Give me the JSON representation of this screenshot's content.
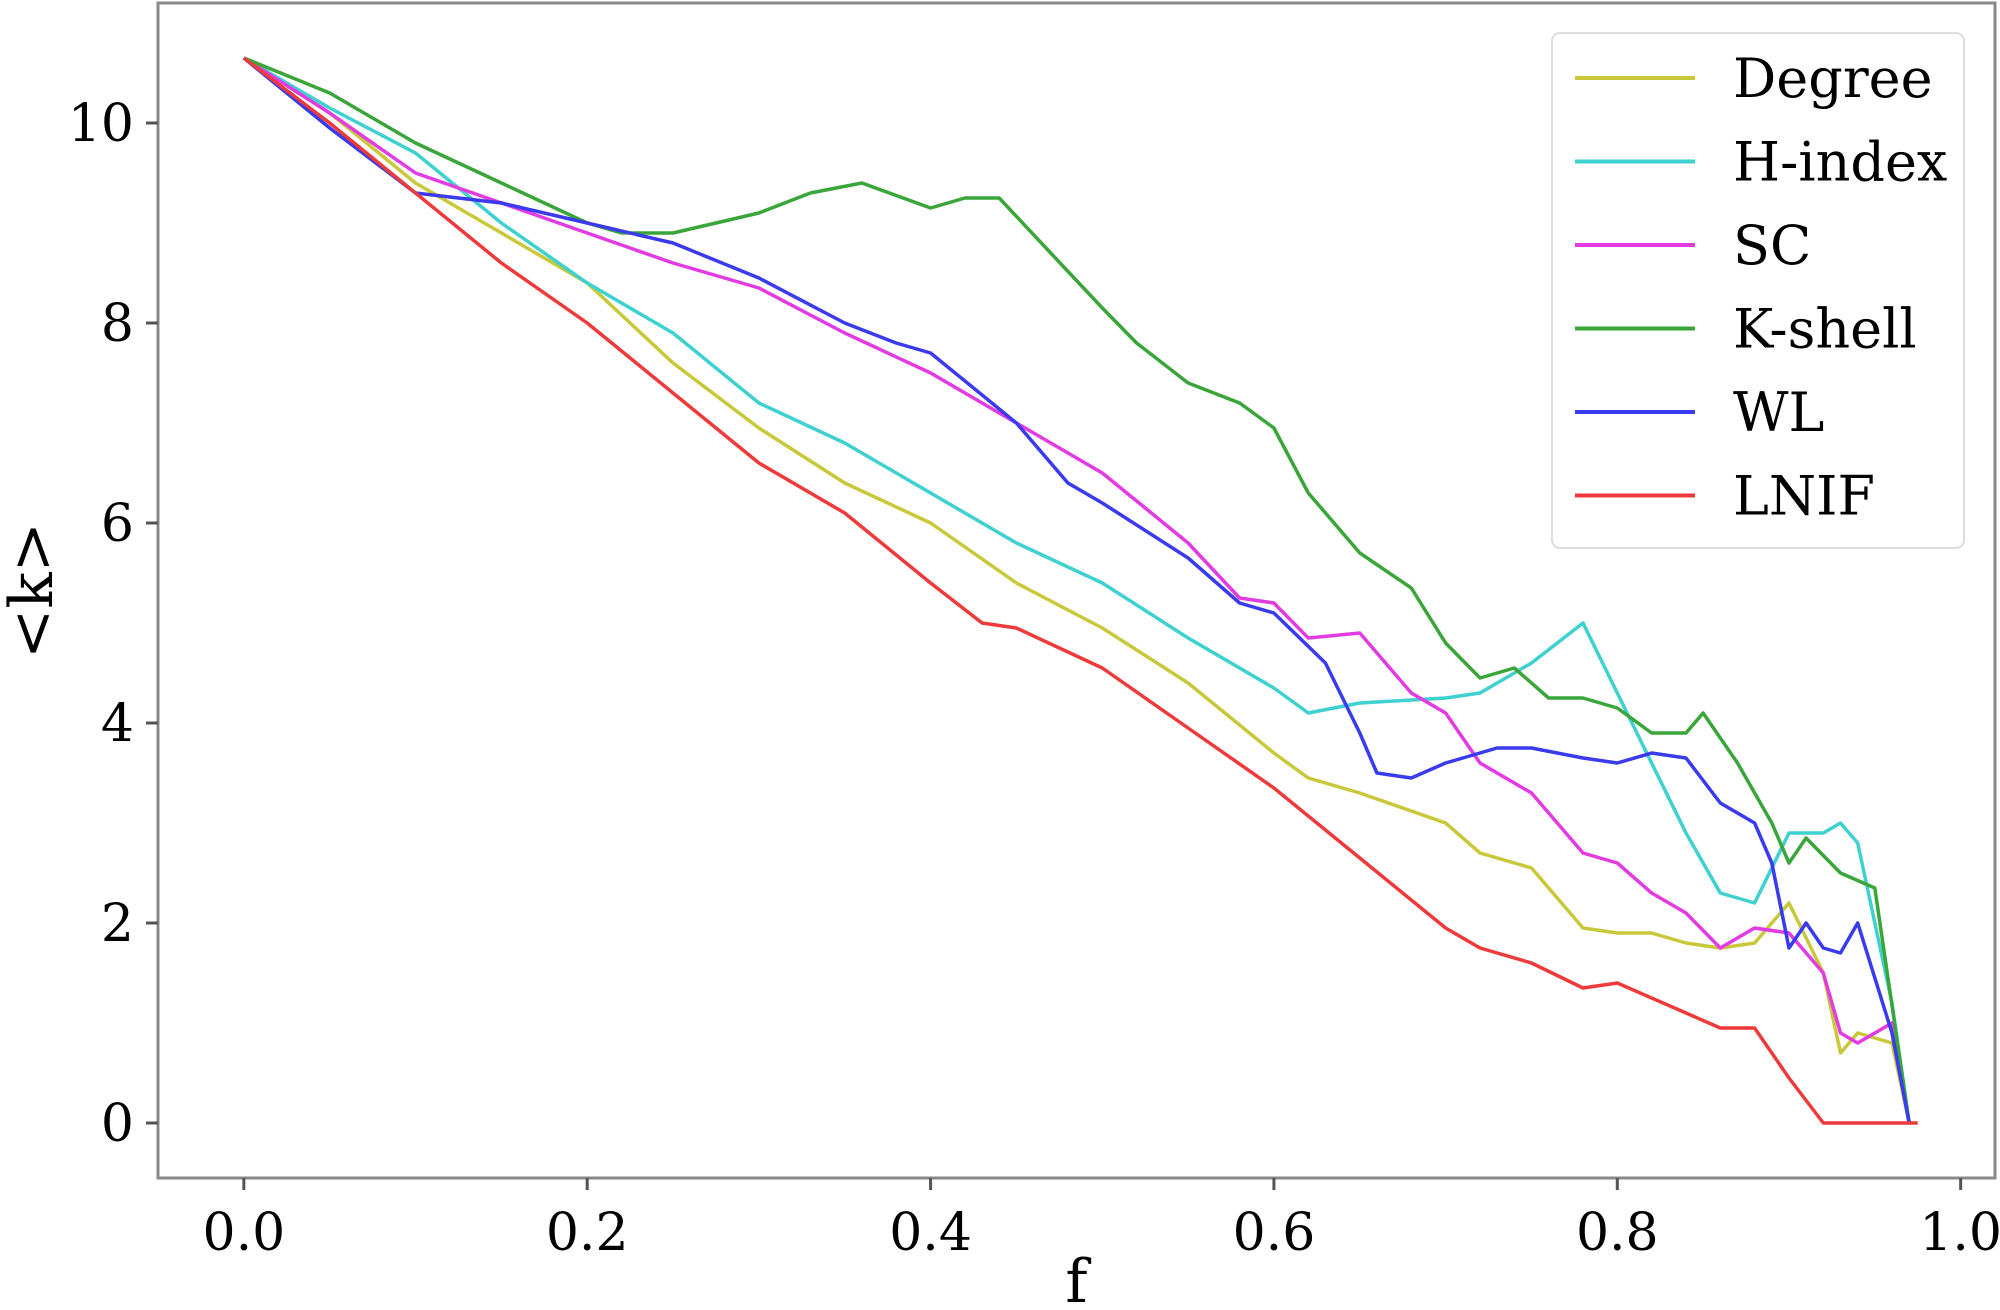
{
  "chart_data": {
    "type": "line",
    "xlabel": "f",
    "ylabel": "<k>",
    "xlim": [
      -0.05,
      1.02
    ],
    "ylim": [
      -0.55,
      11.2
    ],
    "xticks": [
      "0.0",
      "0.2",
      "0.4",
      "0.6",
      "0.8",
      "1.0"
    ],
    "yticks": [
      "0",
      "2",
      "4",
      "6",
      "8",
      "10"
    ],
    "grid": false,
    "legend_position": "top-right",
    "series": [
      {
        "name": "Degree",
        "color": "#c8c83a",
        "x": [
          0.0,
          0.05,
          0.1,
          0.15,
          0.2,
          0.25,
          0.3,
          0.35,
          0.4,
          0.45,
          0.5,
          0.55,
          0.6,
          0.62,
          0.65,
          0.7,
          0.72,
          0.75,
          0.78,
          0.8,
          0.82,
          0.84,
          0.86,
          0.88,
          0.9,
          0.92,
          0.93,
          0.94,
          0.96,
          0.97
        ],
        "y": [
          10.65,
          10.1,
          9.4,
          8.9,
          8.4,
          7.6,
          6.95,
          6.4,
          6.0,
          5.4,
          4.95,
          4.4,
          3.7,
          3.45,
          3.3,
          3.0,
          2.7,
          2.55,
          1.95,
          1.9,
          1.9,
          1.8,
          1.75,
          1.8,
          2.2,
          1.5,
          0.7,
          0.9,
          0.8,
          0.0
        ]
      },
      {
        "name": "H-index",
        "color": "#3fd0d0",
        "x": [
          0.0,
          0.05,
          0.1,
          0.15,
          0.2,
          0.25,
          0.3,
          0.35,
          0.4,
          0.45,
          0.5,
          0.55,
          0.6,
          0.62,
          0.65,
          0.7,
          0.72,
          0.75,
          0.78,
          0.8,
          0.82,
          0.84,
          0.86,
          0.88,
          0.9,
          0.92,
          0.93,
          0.94,
          0.96,
          0.97
        ],
        "y": [
          10.65,
          10.15,
          9.7,
          9.0,
          8.4,
          7.9,
          7.2,
          6.8,
          6.3,
          5.8,
          5.4,
          4.85,
          4.35,
          4.1,
          4.2,
          4.25,
          4.3,
          4.6,
          5.0,
          4.3,
          3.6,
          2.9,
          2.3,
          2.2,
          2.9,
          2.9,
          3.0,
          2.8,
          1.2,
          0.0
        ]
      },
      {
        "name": "SC",
        "color": "#e23be2",
        "x": [
          0.0,
          0.05,
          0.1,
          0.15,
          0.2,
          0.25,
          0.3,
          0.35,
          0.4,
          0.45,
          0.5,
          0.55,
          0.58,
          0.6,
          0.62,
          0.65,
          0.68,
          0.7,
          0.72,
          0.75,
          0.78,
          0.8,
          0.82,
          0.84,
          0.86,
          0.88,
          0.9,
          0.92,
          0.93,
          0.94,
          0.96,
          0.97
        ],
        "y": [
          10.65,
          10.1,
          9.5,
          9.2,
          8.9,
          8.6,
          8.35,
          7.9,
          7.5,
          7.0,
          6.5,
          5.8,
          5.25,
          5.2,
          4.85,
          4.9,
          4.3,
          4.1,
          3.6,
          3.3,
          2.7,
          2.6,
          2.3,
          2.1,
          1.75,
          1.95,
          1.9,
          1.5,
          0.9,
          0.8,
          1.0,
          0.0
        ]
      },
      {
        "name": "K-shell",
        "color": "#3aa63a",
        "x": [
          0.0,
          0.05,
          0.1,
          0.15,
          0.2,
          0.22,
          0.25,
          0.3,
          0.33,
          0.36,
          0.4,
          0.42,
          0.44,
          0.47,
          0.5,
          0.52,
          0.55,
          0.58,
          0.6,
          0.62,
          0.65,
          0.68,
          0.7,
          0.72,
          0.74,
          0.76,
          0.78,
          0.8,
          0.82,
          0.84,
          0.85,
          0.87,
          0.89,
          0.9,
          0.91,
          0.93,
          0.95,
          0.97
        ],
        "y": [
          10.65,
          10.3,
          9.8,
          9.4,
          9.0,
          8.9,
          8.9,
          9.1,
          9.3,
          9.4,
          9.15,
          9.25,
          9.25,
          8.7,
          8.15,
          7.8,
          7.4,
          7.2,
          6.95,
          6.3,
          5.7,
          5.35,
          4.8,
          4.45,
          4.55,
          4.25,
          4.25,
          4.15,
          3.9,
          3.9,
          4.1,
          3.6,
          3.0,
          2.6,
          2.85,
          2.5,
          2.35,
          0.0
        ]
      },
      {
        "name": "WL",
        "color": "#3a3aee",
        "x": [
          0.0,
          0.05,
          0.1,
          0.15,
          0.2,
          0.25,
          0.3,
          0.35,
          0.38,
          0.4,
          0.45,
          0.48,
          0.5,
          0.55,
          0.58,
          0.6,
          0.63,
          0.65,
          0.66,
          0.68,
          0.7,
          0.73,
          0.75,
          0.78,
          0.8,
          0.82,
          0.84,
          0.86,
          0.88,
          0.89,
          0.9,
          0.91,
          0.92,
          0.93,
          0.94,
          0.96,
          0.97
        ],
        "y": [
          10.65,
          9.95,
          9.3,
          9.2,
          9.0,
          8.8,
          8.45,
          8.0,
          7.8,
          7.7,
          7.0,
          6.4,
          6.2,
          5.65,
          5.2,
          5.1,
          4.6,
          3.9,
          3.5,
          3.45,
          3.6,
          3.75,
          3.75,
          3.65,
          3.6,
          3.7,
          3.65,
          3.2,
          3.0,
          2.6,
          1.75,
          2.0,
          1.75,
          1.7,
          2.0,
          0.9,
          0.0
        ]
      },
      {
        "name": "LNIF",
        "color": "#ee3a3a",
        "x": [
          0.0,
          0.05,
          0.1,
          0.15,
          0.2,
          0.25,
          0.3,
          0.35,
          0.4,
          0.43,
          0.45,
          0.5,
          0.55,
          0.6,
          0.65,
          0.7,
          0.72,
          0.75,
          0.78,
          0.8,
          0.82,
          0.84,
          0.86,
          0.88,
          0.9,
          0.92,
          0.94,
          0.96,
          0.975
        ],
        "y": [
          10.65,
          10.0,
          9.3,
          8.6,
          8.0,
          7.3,
          6.6,
          6.1,
          5.4,
          5.0,
          4.95,
          4.55,
          3.95,
          3.35,
          2.65,
          1.95,
          1.75,
          1.6,
          1.35,
          1.4,
          1.25,
          1.1,
          0.95,
          0.95,
          0.45,
          0.0,
          0.0,
          0.0,
          0.0
        ]
      }
    ]
  }
}
